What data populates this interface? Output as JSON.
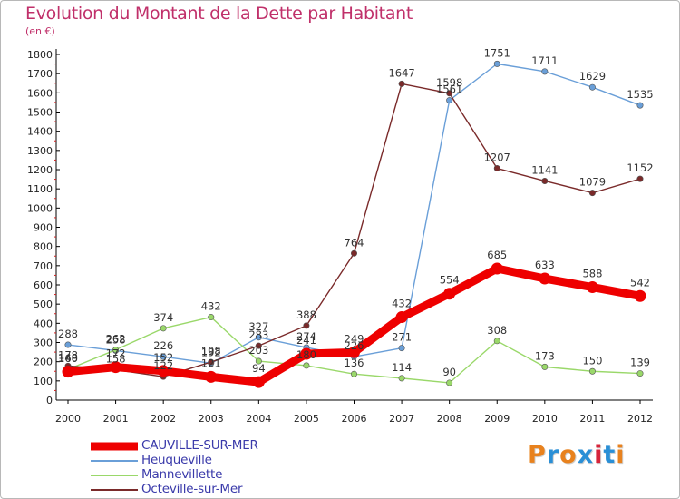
{
  "title": "Evolution du Montant de la Dette par Habitant",
  "subtitle": "(en €)",
  "brand": {
    "text": "Proxiti",
    "colors": [
      "#e8821e",
      "#2a8fd6",
      "#e8821e",
      "#2a8fd6",
      "#d6243a",
      "#2a8fd6",
      "#e8821e"
    ]
  },
  "chart_data": {
    "type": "line",
    "title": "Evolution du Montant de la Dette par Habitant",
    "subtitle": "(en €)",
    "xlabel": "",
    "ylabel": "",
    "ylim": [
      0,
      1800
    ],
    "ytick_step": 100,
    "y_ticks": [
      "0",
      "100",
      "200",
      "300",
      "400",
      "500",
      "600",
      "700",
      "800",
      "900",
      "1000",
      "1100",
      "1200",
      "1300",
      "1400",
      "1500",
      "1600",
      "1700",
      "1800"
    ],
    "x": [
      "2000",
      "2001",
      "2002",
      "2003",
      "2004",
      "2005",
      "2006",
      "2007",
      "2008",
      "2009",
      "2010",
      "2011",
      "2012"
    ],
    "grid": false,
    "legend_position": "bottom-left",
    "series": [
      {
        "name": "CAUVILLE-SUR-MER",
        "color": "#ee0000",
        "stroke_style": "bold",
        "values": [
          148,
          172,
          152,
          121,
          94,
          241,
          249,
          432,
          554,
          685,
          633,
          588,
          542
        ]
      },
      {
        "name": "Heuqueville",
        "color": "#6a9fd8",
        "stroke_style": "thin",
        "values": [
          288,
          258,
          226,
          192,
          327,
          274,
          226,
          271,
          1561,
          1751,
          1711,
          1629,
          1535
        ]
      },
      {
        "name": "Mannevillette",
        "color": "#9ad86a",
        "stroke_style": "thin",
        "values": [
          160,
          262,
          374,
          432,
          203,
          180,
          136,
          114,
          90,
          308,
          173,
          150,
          139
        ]
      },
      {
        "name": "Octeville-sur-Mer",
        "color": "#7a2a2a",
        "stroke_style": "thin",
        "values": [
          178,
          158,
          122,
          198,
          283,
          388,
          764,
          1647,
          1598,
          1207,
          1141,
          1079,
          1152
        ]
      }
    ]
  }
}
